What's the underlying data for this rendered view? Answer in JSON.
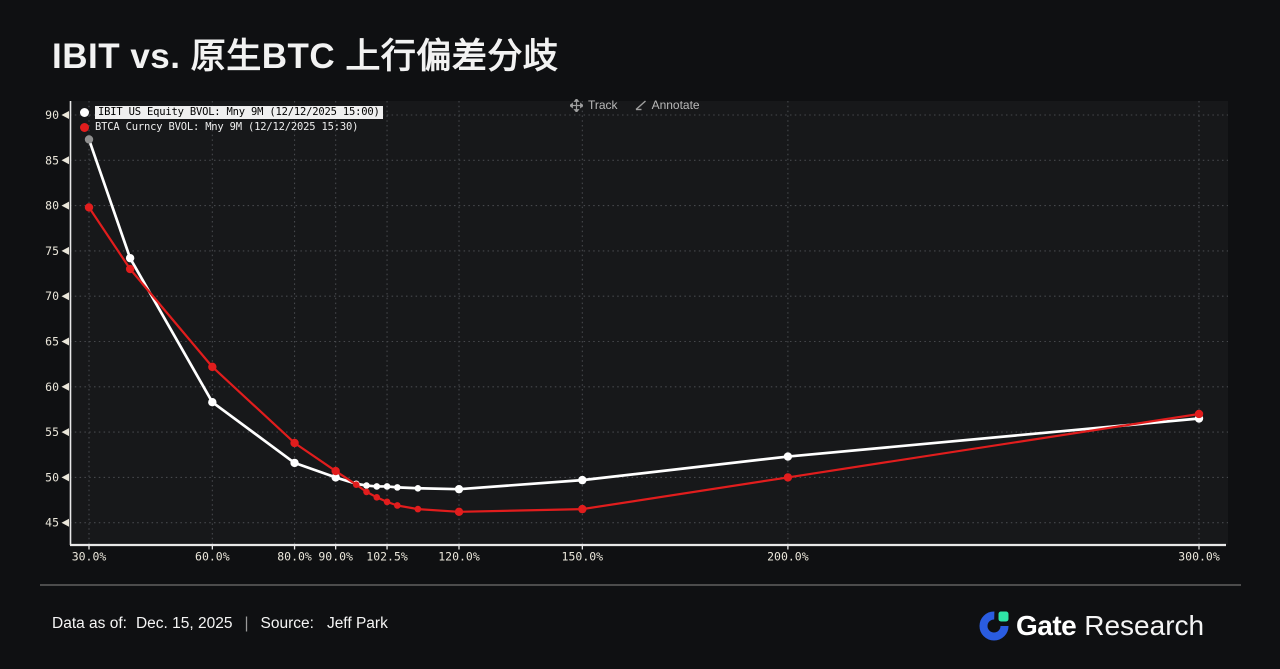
{
  "page": {
    "title": "IBIT vs. 原生BTC 上行偏差分歧"
  },
  "toolbar": {
    "track_label": "Track",
    "annotate_label": "Annotate",
    "track_icon": "move-crosshair-icon",
    "annotate_icon": "pencil-angle-icon"
  },
  "legend": [
    {
      "label": "IBIT US Equity BVOL: Mny 9M (12/12/2025 15:00)",
      "color": "#ffffff",
      "highlighted": true
    },
    {
      "label": "BTCA Curncy BVOL: Mny 9M (12/12/2025 15:30)",
      "color": "#e11d1d",
      "highlighted": false
    }
  ],
  "chart_data": {
    "type": "line",
    "title": "IBIT vs. 原生BTC 上行偏差分歧",
    "xlabel": "",
    "ylabel": "",
    "x_unit": "% moneyness",
    "x": [
      30,
      40,
      60,
      80,
      90,
      95,
      97.5,
      100,
      102.5,
      105,
      110,
      120,
      150,
      200,
      300
    ],
    "series": [
      {
        "name": "IBIT US Equity BVOL: Mny 9M (12/12/2025 15:00)",
        "color": "#ffffff",
        "values": [
          87.3,
          74.2,
          58.3,
          51.6,
          50.0,
          49.3,
          49.1,
          49.0,
          49.0,
          48.9,
          48.8,
          48.7,
          49.7,
          52.3,
          56.5
        ]
      },
      {
        "name": "BTCA Curncy BVOL: Mny 9M (12/12/2025 15:30)",
        "color": "#e11d1d",
        "values": [
          79.8,
          73.0,
          62.2,
          53.8,
          50.7,
          49.2,
          48.4,
          47.8,
          47.3,
          46.9,
          46.5,
          46.2,
          46.5,
          50.0,
          57.0
        ]
      }
    ],
    "x_ticks": {
      "values": [
        30,
        60,
        80,
        90,
        102.5,
        120,
        150,
        200,
        300
      ],
      "labels": [
        "30.0%",
        "60.0%",
        "80.0%",
        "90.0%",
        "102.5%",
        "120.0%",
        "150.0%",
        "200.0%",
        "300.0%"
      ]
    },
    "y_ticks": [
      45,
      50,
      55,
      60,
      65,
      70,
      75,
      80,
      85,
      90
    ],
    "xlim": [
      30,
      300
    ],
    "ylim": [
      42.5,
      91.5
    ],
    "grid": "dotted",
    "legend_position": "top-left",
    "first_point_marker_color": "#8f8f8f",
    "colors": {
      "plot_bg": "#17181a",
      "gridline": "#46484c",
      "axis": "#e8e8e8",
      "tick_label": "#eae6da"
    }
  },
  "footer": {
    "data_as_of_label": "Data as of:",
    "data_as_of_value": "Dec. 15, 2025",
    "separator": "|",
    "source_label": "Source:",
    "source_value": "Jeff Park"
  },
  "brand": {
    "name_bold": "Gate",
    "name_regular": "Research",
    "icon": "gate-logo-icon",
    "blue": "#2a5ce0",
    "green": "#2fe5a7"
  }
}
